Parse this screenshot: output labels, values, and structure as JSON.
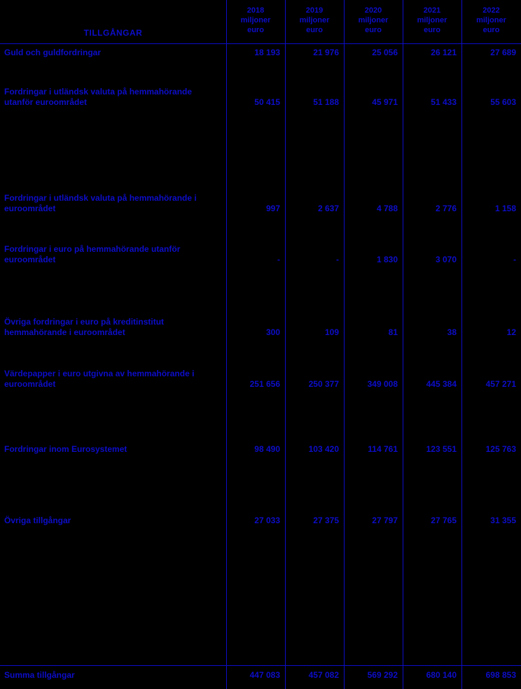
{
  "table": {
    "title": "TILLGÅNGAR",
    "unit_label": "miljoner euro",
    "columns": [
      "2018",
      "2019",
      "2020",
      "2021",
      "2022"
    ],
    "rows": [
      {
        "label": "Guld och guldfordringar",
        "values": [
          "18 193",
          "21 976",
          "25 056",
          "26 121",
          "27 689"
        ]
      },
      {
        "label": "Fordringar i utländsk valuta på hemmahörande utanför euroområdet",
        "values": [
          "50 415",
          "51 188",
          "45 971",
          "51 433",
          "55 603"
        ]
      },
      {
        "label": "Fordringar i utländsk valuta på hemmahörande i euroområdet",
        "values": [
          "997",
          "2 637",
          "4 788",
          "2 776",
          "1 158"
        ]
      },
      {
        "label": "Fordringar i euro på hemmahörande utanför euroområdet",
        "values": [
          "-",
          "-",
          "1 830",
          "3 070",
          "-"
        ]
      },
      {
        "label": "Övriga fordringar i euro på kreditinstitut hemmahörande i euroområdet",
        "values": [
          "300",
          "109",
          "81",
          "38",
          "12"
        ]
      },
      {
        "label": "Värdepapper i euro utgivna av hemmahörande i euroområdet",
        "values": [
          "251 656",
          "250 377",
          "349 008",
          "445 384",
          "457 271"
        ]
      },
      {
        "label": "Fordringar inom Eurosystemet",
        "values": [
          "98 490",
          "103 420",
          "114 761",
          "123 551",
          "125 763"
        ]
      },
      {
        "label": "Övriga tillgångar",
        "values": [
          "27 033",
          "27 375",
          "27 797",
          "27 765",
          "31 355"
        ]
      }
    ],
    "total_row": {
      "label": "Summa tillgångar",
      "values": [
        "447 083",
        "457 082",
        "569 292",
        "680 140",
        "698 853"
      ]
    }
  },
  "colors": {
    "background": "#000000",
    "text": "#0d0dc9"
  }
}
